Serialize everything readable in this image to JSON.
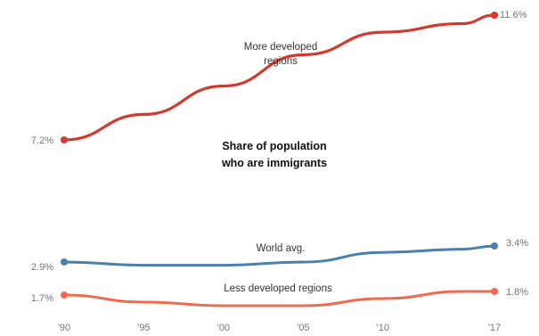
{
  "chart_data": {
    "type": "line",
    "title": "Share of population who are immigrants",
    "title_lines": [
      "Share of population",
      "who are immigrants"
    ],
    "x": [
      1990,
      1995,
      2000,
      2005,
      2010,
      2015,
      2017
    ],
    "x_ticks": [
      {
        "value": 1990,
        "label": "'90"
      },
      {
        "value": 1995,
        "label": "'95"
      },
      {
        "value": 2000,
        "label": "'00"
      },
      {
        "value": 2005,
        "label": "'05"
      },
      {
        "value": 2010,
        "label": "'10"
      },
      {
        "value": 2017,
        "label": "'17"
      }
    ],
    "ylim": [
      1.2,
      11.9
    ],
    "grid": false,
    "legend": "none",
    "series": [
      {
        "key": "more-developed",
        "name": "More developed regions",
        "label_lines": [
          "More developed",
          "regions"
        ],
        "color": "#d13a2e",
        "values": [
          7.2,
          8.1,
          9.1,
          10.2,
          11.0,
          11.3,
          11.6
        ],
        "start_label": "7.2%",
        "end_label": "11.6%"
      },
      {
        "key": "world-avg",
        "name": "World avg.",
        "label_lines": [
          "World avg."
        ],
        "color": "#4a7fb0",
        "values": [
          2.9,
          2.8,
          2.8,
          2.9,
          3.2,
          3.3,
          3.4
        ],
        "start_label": "2.9%",
        "end_label": "3.4%"
      },
      {
        "key": "less-developed",
        "name": "Less developed regions",
        "label_lines": [
          "Less developed regions"
        ],
        "color": "#ef6a4e",
        "values": [
          1.7,
          1.5,
          1.4,
          1.4,
          1.6,
          1.8,
          1.8
        ],
        "start_label": "1.7%",
        "end_label": "1.8%"
      }
    ]
  }
}
